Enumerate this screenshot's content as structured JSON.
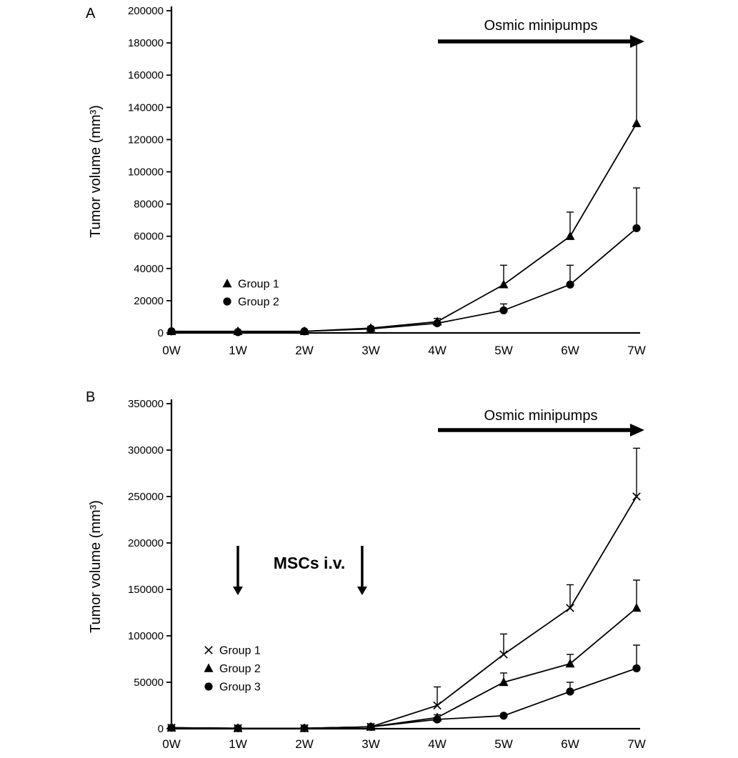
{
  "chart_data": [
    {
      "type": "line",
      "panel": "A",
      "ylabel": "Tumor volume (mm³)",
      "ylim": [
        0,
        200000
      ],
      "ytick_step": 20000,
      "grid": false,
      "legend_position": "lower-left-inside",
      "x": [
        "0W",
        "1W",
        "2W",
        "3W",
        "4W",
        "5W",
        "6W",
        "7W"
      ],
      "series": [
        {
          "name": "Group 1",
          "marker": "triangle",
          "values": [
            1000,
            1000,
            1000,
            3000,
            7000,
            30000,
            60000,
            130000
          ],
          "errors": [
            0,
            0,
            0,
            1000,
            2000,
            12000,
            15000,
            50000
          ]
        },
        {
          "name": "Group 2",
          "marker": "circle",
          "values": [
            1000,
            500,
            1000,
            2500,
            6000,
            14000,
            30000,
            65000
          ],
          "errors": [
            0,
            0,
            0,
            0,
            0,
            4000,
            12000,
            25000
          ]
        }
      ],
      "annotations": {
        "pump_label": "Osmic minipumps",
        "pump_span_weeks": [
          "4W",
          "7W"
        ]
      }
    },
    {
      "type": "line",
      "panel": "B",
      "ylabel": "Tumor volume (mm³)",
      "ylim": [
        0,
        350000
      ],
      "ytick_step": 50000,
      "grid": false,
      "legend_position": "lower-left-inside",
      "x": [
        "0W",
        "1W",
        "2W",
        "3W",
        "4W",
        "5W",
        "6W",
        "7W"
      ],
      "series": [
        {
          "name": "Group 1",
          "marker": "x",
          "values": [
            1000,
            500,
            500,
            2000,
            25000,
            80000,
            130000,
            250000
          ],
          "errors": [
            0,
            0,
            0,
            0,
            20000,
            22000,
            25000,
            52000
          ]
        },
        {
          "name": "Group 2",
          "marker": "triangle",
          "values": [
            1000,
            500,
            500,
            2000,
            12000,
            50000,
            70000,
            130000
          ],
          "errors": [
            0,
            0,
            0,
            0,
            3000,
            10000,
            10000,
            30000
          ]
        },
        {
          "name": "Group 3",
          "marker": "circle",
          "values": [
            1000,
            500,
            500,
            2000,
            10000,
            14000,
            40000,
            65000
          ],
          "errors": [
            0,
            0,
            0,
            0,
            0,
            0,
            10000,
            25000
          ]
        }
      ],
      "annotations": {
        "pump_label": "Osmic minipumps",
        "pump_span_weeks": [
          "4W",
          "7W"
        ],
        "msc_label": "MSCs i.v.",
        "msc_injection_weeks": [
          "1W",
          "3W"
        ]
      }
    }
  ],
  "colors": {
    "ink": "#000000"
  }
}
